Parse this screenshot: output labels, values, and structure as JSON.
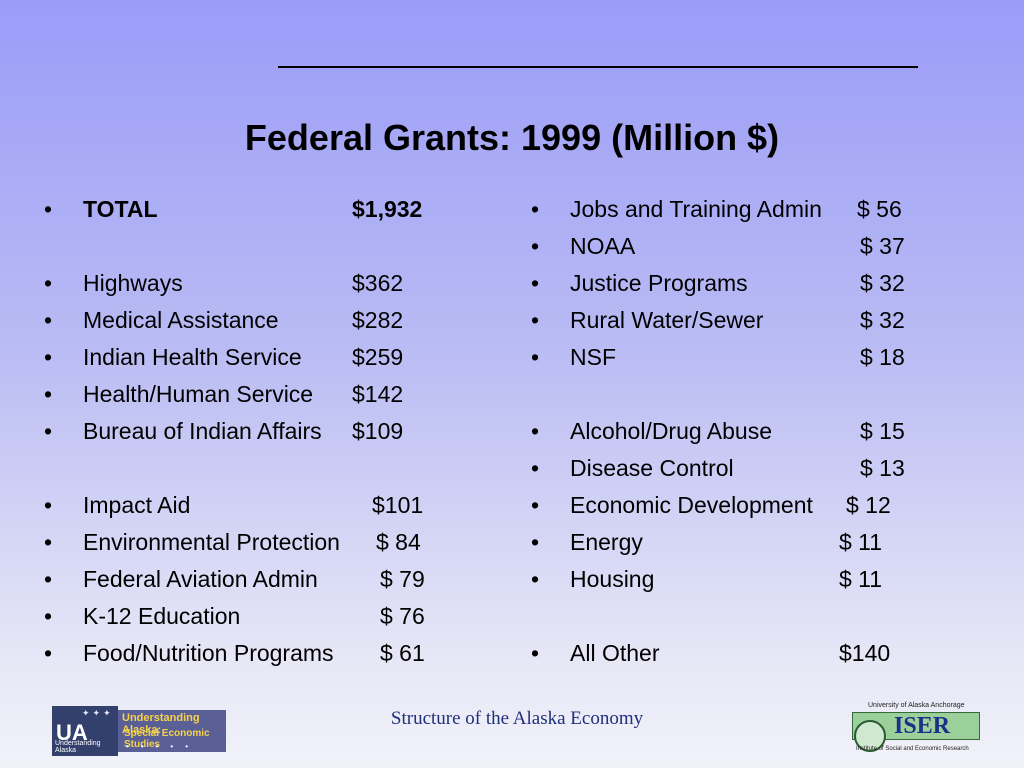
{
  "title": "Federal Grants: 1999 (Million $)",
  "bullet": "•",
  "left_items": [
    {
      "label": "TOTAL",
      "value": "$1,932",
      "bold": true
    },
    {
      "label": "Highways",
      "value": "$362"
    },
    {
      "label": "Medical Assistance",
      "value": "$282"
    },
    {
      "label": "Indian Health Service",
      "value": "$259"
    },
    {
      "label": "Health/Human Service",
      "value": "$142"
    },
    {
      "label": "Bureau of Indian Affairs",
      "value": "$109"
    },
    {
      "label": "Impact Aid",
      "value": "$101"
    },
    {
      "label": "Environmental Protection",
      "value": "$ 84"
    },
    {
      "label": "Federal Aviation Admin",
      "value": "$ 79"
    },
    {
      "label": "K-12 Education",
      "value": "$ 76"
    },
    {
      "label": "Food/Nutrition Programs",
      "value": "$ 61"
    }
  ],
  "right_items": [
    {
      "label": "Jobs and Training Admin",
      "value": "$ 56"
    },
    {
      "label": "NOAA",
      "value": "$ 37"
    },
    {
      "label": "Justice Programs",
      "value": "$ 32"
    },
    {
      "label": "Rural Water/Sewer",
      "value": "$ 32"
    },
    {
      "label": "NSF",
      "value": "$ 18"
    },
    {
      "label": "Alcohol/Drug Abuse",
      "value": "$ 15"
    },
    {
      "label": "Disease Control",
      "value": "$ 13"
    },
    {
      "label": "Economic Development",
      "value": "$ 12"
    },
    {
      "label": "Energy",
      "value": "$ 11"
    },
    {
      "label": "Housing",
      "value": "$ 11"
    },
    {
      "label": "All Other",
      "value": "$140"
    }
  ],
  "footer": {
    "text": "Structure of the Alaska Economy",
    "ua_logo": {
      "letters": "UA",
      "small": "Understanding Alaska",
      "line1": "Understanding Alaska:",
      "line2": "Special Economic Studies"
    },
    "iser_logo": {
      "top": "University of Alaska Anchorage",
      "word": "ISER",
      "bottom": "Institute of Social and Economic Research"
    }
  },
  "colors": {
    "background_top": "#9a9cf8",
    "background_bottom": "#f2f2fa",
    "footer_text": "#1f2f7a",
    "iser_green": "#9bd09a",
    "iser_blue": "#1c2f8a"
  }
}
